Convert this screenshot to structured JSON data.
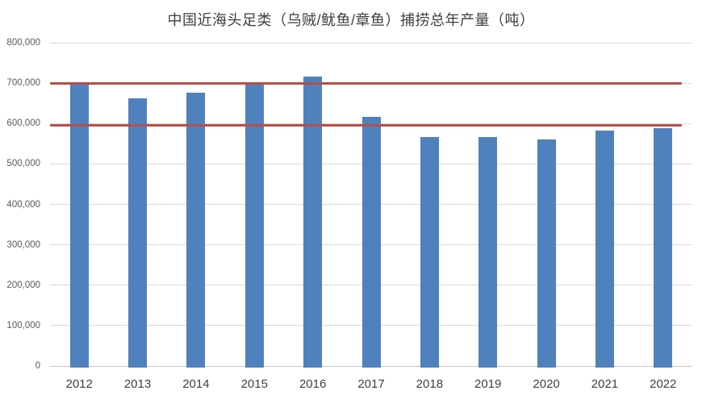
{
  "colors": {
    "background": "#ffffff",
    "bar": "#4f81bd",
    "reference_line": "#b5504b",
    "gridline": "#d9d9d9",
    "axis_line": "#c9c9c9",
    "y_tick_text": "#595959",
    "x_tick_text": "#404040",
    "title_text": "#3f3f3f"
  },
  "chart_data": {
    "type": "bar",
    "title": "中国近海头足类（乌贼/鱿鱼/章鱼）捕捞总年产量（吨）",
    "xlabel": "",
    "ylabel": "",
    "unit": "吨",
    "categories": [
      "2012",
      "2013",
      "2014",
      "2015",
      "2016",
      "2017",
      "2018",
      "2019",
      "2020",
      "2021",
      "2022"
    ],
    "values": [
      696000,
      662000,
      676000,
      698000,
      716000,
      616000,
      566000,
      567000,
      560000,
      583000,
      589000
    ],
    "ylim": [
      0,
      800000
    ],
    "y_tick_step": 100000,
    "y_tick_labels": [
      "0",
      "100,000",
      "200,000",
      "300,000",
      "400,000",
      "500,000",
      "600,000",
      "700,000",
      "800,000"
    ],
    "grid": true,
    "legend": false,
    "reference_lines": [
      {
        "name": "upper-reference-line",
        "value": 700000
      },
      {
        "name": "lower-reference-line",
        "value": 595000
      }
    ]
  }
}
